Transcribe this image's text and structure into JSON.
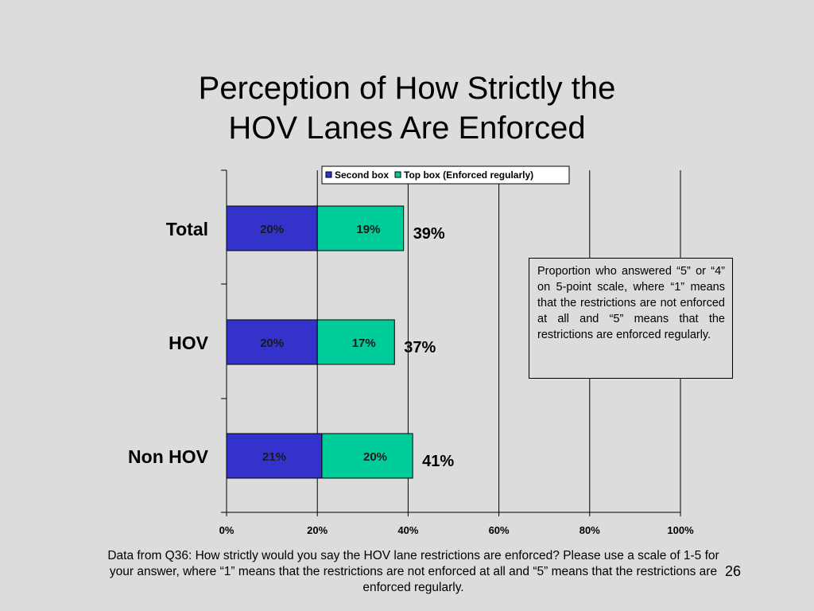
{
  "slide": {
    "title_line1": "Perception of How Strictly the",
    "title_line2": "HOV Lanes Are Enforced",
    "note": "Proportion who answered “5” or “4” on 5-point scale, where “1” means that the restrictions are not enforced at all and “5” means that the restrictions are enforced regularly.",
    "footnote": "Data from Q36:  How strictly would you say the HOV lane restrictions are enforced?  Please use a scale of 1-5 for your answer, where “1” means that the restrictions are not enforced at all and “5” means that the restrictions are enforced regularly.",
    "page_number": "26"
  },
  "colors": {
    "second_box": "#3333cc",
    "top_box": "#00cc99",
    "background": "#dcdcdc"
  },
  "chart_data": {
    "type": "bar",
    "orientation": "horizontal",
    "stacked": true,
    "categories": [
      "Total",
      "HOV",
      "Non HOV"
    ],
    "series": [
      {
        "name": "Second box",
        "values": [
          20,
          20,
          21
        ],
        "labels": [
          "20%",
          "20%",
          "21%"
        ]
      },
      {
        "name": "Top box (Enforced regularly)",
        "values": [
          19,
          17,
          20
        ],
        "labels": [
          "19%",
          "17%",
          "20%"
        ]
      }
    ],
    "totals": [
      39,
      37,
      41
    ],
    "total_labels": [
      "39%",
      "37%",
      "41%"
    ],
    "xlim": [
      0,
      100
    ],
    "xticks": [
      0,
      20,
      40,
      60,
      80,
      100
    ],
    "xtick_labels": [
      "0%",
      "20%",
      "40%",
      "60%",
      "80%",
      "100%"
    ],
    "grid": "vertical",
    "legend": "top"
  }
}
